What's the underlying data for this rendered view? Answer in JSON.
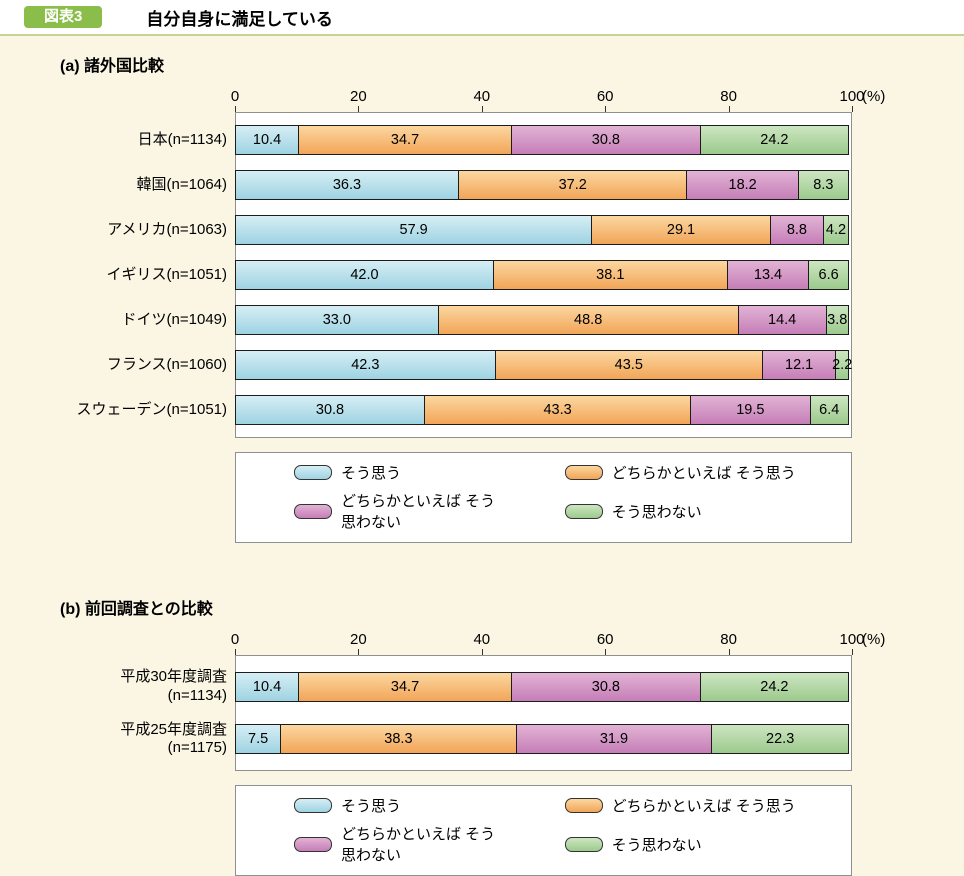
{
  "page": {
    "badge": "図表3",
    "title": "自分自身に満足している"
  },
  "colors": {
    "page_bg": "#fbf6e4",
    "badge_green": "#8abd4a",
    "header_rule_green": "#c5d494"
  },
  "series_meta": [
    {
      "name": "そう思う",
      "color_top": "#d6eef5",
      "color_bottom": "#9ed3e2"
    },
    {
      "name": "どちらかといえば そう思う",
      "color_top": "#fbd7a0",
      "color_bottom": "#f2a558"
    },
    {
      "name": "どちらかといえば そう思わない",
      "color_top": "#e2b3d5",
      "color_bottom": "#c67eb7"
    },
    {
      "name": "そう思わない",
      "color_top": "#cde6c1",
      "color_bottom": "#9cca8d"
    }
  ],
  "chart_data": [
    {
      "type": "bar",
      "orientation": "horizontal-stacked",
      "section_label": "(a) 諸外国比較",
      "title": "自分自身に満足している",
      "x_ticks": [
        0,
        20,
        40,
        60,
        80,
        100
      ],
      "x_unit": "(%)",
      "xlim": [
        0,
        100
      ],
      "grid": false,
      "legend_position": "bottom",
      "categories": [
        "日本(n=1134)",
        "韓国(n=1064)",
        "アメリカ(n=1063)",
        "イギリス(n=1051)",
        "ドイツ(n=1049)",
        "フランス(n=1060)",
        "スウェーデン(n=1051)"
      ],
      "series": [
        {
          "name": "そう思う",
          "values": [
            10.4,
            36.3,
            57.9,
            42.0,
            33.0,
            42.3,
            30.8
          ]
        },
        {
          "name": "どちらかといえば そう思う",
          "values": [
            34.7,
            37.2,
            29.1,
            38.1,
            48.8,
            43.5,
            43.3
          ]
        },
        {
          "name": "どちらかといえば そう思わない",
          "values": [
            30.8,
            18.2,
            8.8,
            13.4,
            14.4,
            12.1,
            19.5
          ]
        },
        {
          "name": "そう思わない",
          "values": [
            24.2,
            8.3,
            4.2,
            6.6,
            3.8,
            2.2,
            6.4
          ]
        }
      ]
    },
    {
      "type": "bar",
      "orientation": "horizontal-stacked",
      "section_label": "(b) 前回調査との比較",
      "title": "自分自身に満足している",
      "x_ticks": [
        0,
        20,
        40,
        60,
        80,
        100
      ],
      "x_unit": "(%)",
      "xlim": [
        0,
        100
      ],
      "grid": false,
      "legend_position": "bottom",
      "categories": [
        "平成30年度調査\n(n=1134)",
        "平成25年度調査\n(n=1175)"
      ],
      "series": [
        {
          "name": "そう思う",
          "values": [
            10.4,
            7.5
          ]
        },
        {
          "name": "どちらかといえば そう思う",
          "values": [
            34.7,
            38.3
          ]
        },
        {
          "name": "どちらかといえば そう思わない",
          "values": [
            30.8,
            31.9
          ]
        },
        {
          "name": "そう思わない",
          "values": [
            24.2,
            22.3
          ]
        }
      ]
    }
  ]
}
